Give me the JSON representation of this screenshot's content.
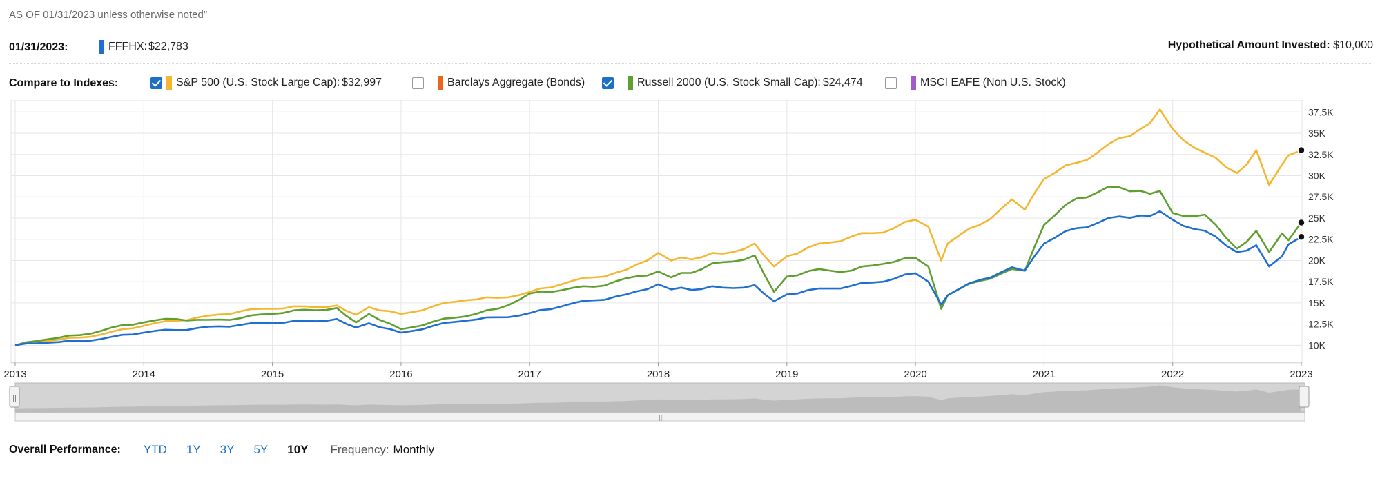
{
  "header": {
    "as_of": "AS OF 01/31/2023 unless otherwise noted\"",
    "date_label": "01/31/2023:",
    "fund_label": "FFFHX:",
    "fund_value": "$22,783",
    "hypothetical_label": "Hypothetical Amount Invested:",
    "hypothetical_value": "$10,000"
  },
  "compare": {
    "label": "Compare to Indexes:",
    "indexes": [
      {
        "name": "S&P 500 (U.S. Stock Large Cap):",
        "value": "$32,997",
        "checked": true,
        "color": "#f5b731"
      },
      {
        "name": "Barclays Aggregate (Bonds)",
        "value": "",
        "checked": false,
        "color": "#e9661b"
      },
      {
        "name": "Russell 2000 (U.S. Stock Small Cap):",
        "value": "$24,474",
        "checked": true,
        "color": "#5f9f2f"
      },
      {
        "name": "MSCI EAFE (Non U.S. Stock)",
        "value": "",
        "checked": false,
        "color": "#a45ac9"
      }
    ]
  },
  "colors": {
    "fund": "#1f6fd0",
    "sp500": "#f5b731",
    "russell": "#5f9f2f",
    "navigator": "#c9c9c9",
    "grid": "#e6e6e6"
  },
  "chart_data": {
    "type": "line",
    "x_ticks": [
      "2013",
      "2014",
      "2015",
      "2016",
      "2017",
      "2018",
      "2019",
      "2020",
      "2021",
      "2022",
      "2023"
    ],
    "y_ticks": [
      "10K",
      "12.5K",
      "15K",
      "17.5K",
      "20K",
      "22.5K",
      "25K",
      "27.5K",
      "30K",
      "32.5K",
      "35K",
      "37.5K"
    ],
    "ylim": [
      8000,
      38500
    ],
    "xlim": [
      2013.0,
      2023.0
    ],
    "grid": true,
    "series": [
      {
        "name": "FFFHX",
        "color": "#1f6fd0",
        "points": [
          [
            2013.0,
            10000
          ],
          [
            2013.25,
            10300
          ],
          [
            2013.5,
            10500
          ],
          [
            2013.75,
            11000
          ],
          [
            2014.0,
            11500
          ],
          [
            2014.25,
            11800
          ],
          [
            2014.5,
            12200
          ],
          [
            2014.75,
            12400
          ],
          [
            2015.0,
            12600
          ],
          [
            2015.25,
            12900
          ],
          [
            2015.5,
            13100
          ],
          [
            2015.65,
            12100
          ],
          [
            2015.75,
            12600
          ],
          [
            2016.0,
            11500
          ],
          [
            2016.25,
            12300
          ],
          [
            2016.5,
            12900
          ],
          [
            2016.75,
            13300
          ],
          [
            2017.0,
            13800
          ],
          [
            2017.25,
            14600
          ],
          [
            2017.5,
            15300
          ],
          [
            2017.75,
            16000
          ],
          [
            2018.0,
            17200
          ],
          [
            2018.1,
            16600
          ],
          [
            2018.5,
            16800
          ],
          [
            2018.75,
            17100
          ],
          [
            2018.9,
            15200
          ],
          [
            2019.0,
            16000
          ],
          [
            2019.25,
            16700
          ],
          [
            2019.5,
            17000
          ],
          [
            2019.75,
            17500
          ],
          [
            2020.0,
            18500
          ],
          [
            2020.1,
            17500
          ],
          [
            2020.2,
            14800
          ],
          [
            2020.25,
            15900
          ],
          [
            2020.5,
            17700
          ],
          [
            2020.75,
            19200
          ],
          [
            2020.85,
            18800
          ],
          [
            2021.0,
            22000
          ],
          [
            2021.25,
            23800
          ],
          [
            2021.5,
            25000
          ],
          [
            2021.75,
            25300
          ],
          [
            2021.9,
            25800
          ],
          [
            2022.0,
            24800
          ],
          [
            2022.25,
            23500
          ],
          [
            2022.5,
            21000
          ],
          [
            2022.65,
            21800
          ],
          [
            2022.75,
            19300
          ],
          [
            2022.85,
            20500
          ],
          [
            2022.9,
            21900
          ],
          [
            2023.0,
            22783
          ]
        ]
      },
      {
        "name": "S&P 500 (U.S. Stock Large Cap)",
        "color": "#f5b731",
        "points": [
          [
            2013.0,
            10000
          ],
          [
            2013.25,
            10500
          ],
          [
            2013.5,
            10900
          ],
          [
            2013.75,
            11600
          ],
          [
            2014.0,
            12300
          ],
          [
            2014.25,
            12900
          ],
          [
            2014.5,
            13500
          ],
          [
            2014.75,
            14000
          ],
          [
            2015.0,
            14300
          ],
          [
            2015.25,
            14600
          ],
          [
            2015.5,
            14700
          ],
          [
            2015.65,
            13600
          ],
          [
            2015.75,
            14500
          ],
          [
            2016.0,
            13700
          ],
          [
            2016.25,
            14600
          ],
          [
            2016.5,
            15300
          ],
          [
            2016.75,
            15600
          ],
          [
            2017.0,
            16300
          ],
          [
            2017.25,
            17200
          ],
          [
            2017.5,
            18000
          ],
          [
            2017.75,
            18900
          ],
          [
            2018.0,
            20900
          ],
          [
            2018.1,
            20000
          ],
          [
            2018.5,
            20800
          ],
          [
            2018.75,
            22000
          ],
          [
            2018.9,
            19300
          ],
          [
            2019.0,
            20500
          ],
          [
            2019.25,
            22000
          ],
          [
            2019.5,
            22800
          ],
          [
            2019.75,
            23300
          ],
          [
            2020.0,
            24800
          ],
          [
            2020.1,
            24000
          ],
          [
            2020.2,
            20000
          ],
          [
            2020.25,
            22000
          ],
          [
            2020.5,
            24200
          ],
          [
            2020.75,
            27200
          ],
          [
            2020.85,
            26000
          ],
          [
            2021.0,
            29600
          ],
          [
            2021.25,
            31500
          ],
          [
            2021.5,
            33700
          ],
          [
            2021.75,
            35500
          ],
          [
            2021.9,
            37800
          ],
          [
            2022.0,
            35500
          ],
          [
            2022.25,
            32700
          ],
          [
            2022.5,
            30300
          ],
          [
            2022.65,
            33000
          ],
          [
            2022.75,
            28900
          ],
          [
            2022.85,
            31300
          ],
          [
            2022.9,
            32400
          ],
          [
            2023.0,
            32997
          ]
        ]
      },
      {
        "name": "Russell 2000 (U.S. Stock Small Cap)",
        "color": "#5f9f2f",
        "points": [
          [
            2013.0,
            10000
          ],
          [
            2013.25,
            10700
          ],
          [
            2013.5,
            11200
          ],
          [
            2013.75,
            12100
          ],
          [
            2014.0,
            12700
          ],
          [
            2014.25,
            13100
          ],
          [
            2014.5,
            13000
          ],
          [
            2014.75,
            13200
          ],
          [
            2015.0,
            13700
          ],
          [
            2015.25,
            14200
          ],
          [
            2015.5,
            14400
          ],
          [
            2015.65,
            12700
          ],
          [
            2015.75,
            13700
          ],
          [
            2016.0,
            11900
          ],
          [
            2016.25,
            12800
          ],
          [
            2016.5,
            13400
          ],
          [
            2016.75,
            14300
          ],
          [
            2017.0,
            16100
          ],
          [
            2017.25,
            16500
          ],
          [
            2017.5,
            16900
          ],
          [
            2017.75,
            17900
          ],
          [
            2018.0,
            18700
          ],
          [
            2018.1,
            18000
          ],
          [
            2018.5,
            19800
          ],
          [
            2018.75,
            20600
          ],
          [
            2018.9,
            16300
          ],
          [
            2019.0,
            18100
          ],
          [
            2019.25,
            19000
          ],
          [
            2019.5,
            18800
          ],
          [
            2019.75,
            19600
          ],
          [
            2020.0,
            20300
          ],
          [
            2020.1,
            19300
          ],
          [
            2020.2,
            14300
          ],
          [
            2020.25,
            15900
          ],
          [
            2020.5,
            17600
          ],
          [
            2020.75,
            19000
          ],
          [
            2020.85,
            18800
          ],
          [
            2021.0,
            24200
          ],
          [
            2021.25,
            27300
          ],
          [
            2021.5,
            28700
          ],
          [
            2021.75,
            28200
          ],
          [
            2021.9,
            28200
          ],
          [
            2022.0,
            25600
          ],
          [
            2022.25,
            25400
          ],
          [
            2022.5,
            21400
          ],
          [
            2022.65,
            23500
          ],
          [
            2022.75,
            21000
          ],
          [
            2022.85,
            23200
          ],
          [
            2022.9,
            22400
          ],
          [
            2023.0,
            24474
          ]
        ]
      }
    ]
  },
  "navigator": {
    "handle_left": "||",
    "handle_right": "||",
    "grip": "|||"
  },
  "performance": {
    "label": "Overall Performance:",
    "periods": [
      {
        "label": "YTD",
        "active": false
      },
      {
        "label": "1Y",
        "active": false
      },
      {
        "label": "3Y",
        "active": false
      },
      {
        "label": "5Y",
        "active": false
      },
      {
        "label": "10Y",
        "active": true
      }
    ],
    "frequency_label": "Frequency:",
    "frequency_value": "Monthly"
  }
}
